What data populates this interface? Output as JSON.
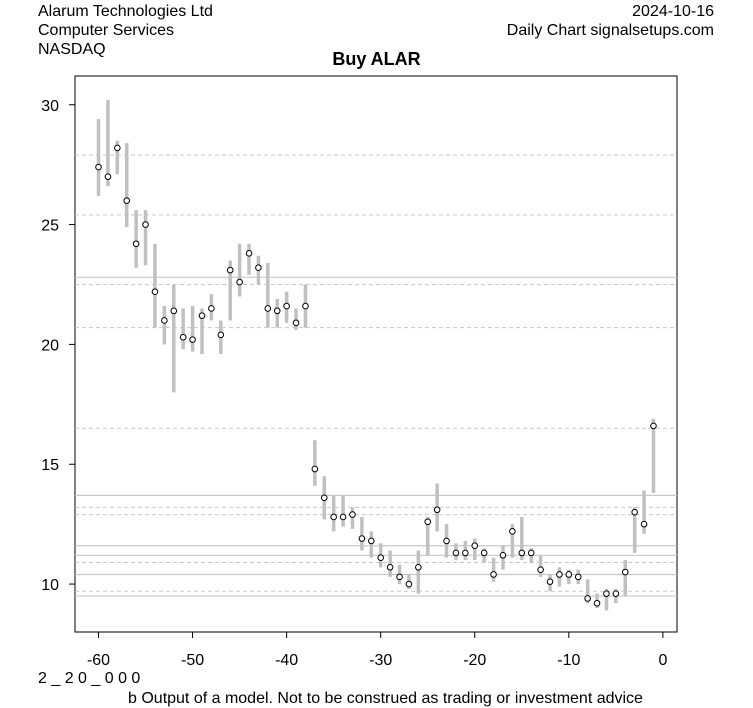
{
  "header": {
    "company": "Alarum Technologies Ltd",
    "sector": "Computer Services",
    "exchange": "NASDAQ",
    "date": "2024-10-16",
    "source": "Daily Chart signalsetups.com"
  },
  "footer": {
    "code": "2 _ 2 0 _ 0 0 0",
    "disclaimer": "b Output of a model. Not to be construed as trading or investment advice"
  },
  "chart_data": {
    "type": "line",
    "title": "Buy ALAR",
    "xlabel": "",
    "ylabel": "",
    "xlim": [
      -62.5,
      1.5
    ],
    "ylim": [
      8,
      31.2
    ],
    "x_ticks": [
      -60,
      -50,
      -40,
      -30,
      -20,
      -10,
      0
    ],
    "y_ticks": [
      10,
      15,
      20,
      25,
      30
    ],
    "grid": false,
    "colors": {
      "range": "#c0c0c0",
      "point": "#000000",
      "solid_line": "#c8c8c8",
      "dashed_line": "#c8c8c8"
    },
    "solid_lines": [
      22.8,
      13.7,
      11.6,
      11.2,
      10.4,
      9.5
    ],
    "dashed_lines": [
      27.9,
      25.4,
      22.5,
      20.7,
      16.5,
      13.2,
      12.9,
      10.9,
      9.7
    ],
    "series": [
      {
        "x": [
          -60,
          -59,
          -58,
          -57,
          -56,
          -55,
          -54,
          -53,
          -52,
          -51,
          -50,
          -49,
          -48,
          -47,
          -46,
          -45,
          -44,
          -43,
          -42,
          -41,
          -40,
          -39,
          -38,
          -37,
          -36,
          -35,
          -34,
          -33,
          -32,
          -31,
          -30,
          -29,
          -28,
          -27,
          -26,
          -25,
          -24,
          -23,
          -22,
          -21,
          -20,
          -19,
          -18,
          -17,
          -16,
          -15,
          -14,
          -13,
          -12,
          -11,
          -10,
          -9,
          -8,
          -7,
          -6,
          -5,
          -4,
          -3,
          -2,
          -1
        ],
        "close": [
          27.4,
          27.0,
          28.2,
          26.0,
          24.2,
          25.0,
          22.2,
          21.0,
          21.4,
          20.3,
          20.2,
          21.2,
          21.5,
          20.4,
          23.1,
          22.6,
          23.8,
          23.2,
          21.5,
          21.4,
          21.6,
          20.9,
          21.6,
          14.8,
          13.6,
          12.8,
          12.8,
          12.9,
          11.9,
          11.8,
          11.1,
          10.7,
          10.3,
          10.0,
          10.7,
          12.6,
          13.1,
          11.8,
          11.3,
          11.3,
          11.6,
          11.3,
          10.4,
          11.2,
          12.2,
          11.3,
          11.3,
          10.6,
          10.1,
          10.4,
          10.4,
          10.3,
          9.4,
          9.2,
          9.6,
          9.6,
          10.5,
          13.0,
          12.5,
          16.6
        ],
        "low": [
          26.2,
          26.6,
          27.1,
          24.9,
          23.2,
          23.3,
          20.7,
          20.0,
          18.0,
          19.8,
          19.7,
          19.6,
          21.0,
          19.6,
          21.0,
          22.0,
          22.9,
          22.5,
          20.7,
          20.7,
          20.9,
          20.6,
          20.7,
          14.1,
          12.7,
          12.2,
          12.4,
          12.3,
          11.4,
          11.1,
          10.7,
          10.3,
          10.0,
          9.8,
          9.6,
          11.2,
          12.2,
          11.1,
          11.0,
          11.0,
          11.0,
          10.9,
          10.1,
          10.6,
          11.1,
          11.0,
          10.9,
          10.3,
          9.7,
          9.9,
          10.0,
          10.0,
          9.2,
          9.0,
          8.9,
          9.2,
          9.5,
          11.3,
          12.1,
          13.8
        ],
        "high": [
          29.4,
          30.2,
          28.5,
          28.4,
          25.6,
          25.6,
          24.2,
          21.6,
          22.5,
          21.5,
          21.6,
          21.5,
          22.1,
          21.0,
          23.5,
          24.2,
          24.2,
          23.7,
          23.4,
          21.9,
          22.2,
          21.5,
          22.5,
          16.0,
          14.5,
          13.7,
          13.7,
          13.2,
          12.8,
          12.2,
          11.7,
          11.4,
          10.8,
          10.4,
          11.4,
          12.8,
          14.2,
          12.5,
          11.7,
          11.8,
          11.9,
          11.5,
          11.1,
          11.6,
          12.5,
          12.8,
          11.5,
          11.2,
          10.4,
          10.7,
          10.6,
          10.6,
          10.2,
          9.6,
          9.8,
          9.8,
          11.0,
          13.2,
          13.9,
          16.9
        ]
      }
    ]
  }
}
